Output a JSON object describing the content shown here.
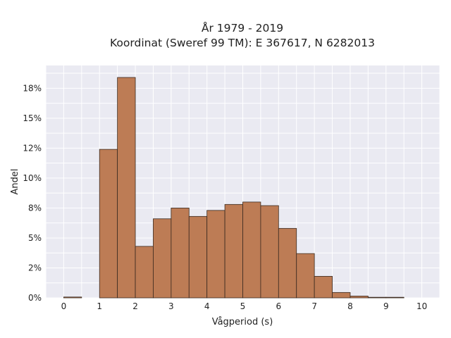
{
  "chart_data": {
    "type": "bar",
    "title": [
      "År 1979 - 2019",
      "Koordinat (Sweref 99 TM): E 367617, N 6282013"
    ],
    "xlabel": "Vågperiod (s)",
    "ylabel": "Andel",
    "x_bin_width": 0.5,
    "x_bin_starts": [
      0.0,
      0.5,
      1.0,
      1.5,
      2.0,
      2.5,
      3.0,
      3.5,
      4.0,
      4.5,
      5.0,
      5.5,
      6.0,
      6.5,
      7.0,
      7.5,
      8.0,
      8.5,
      9.0,
      9.5
    ],
    "values": [
      0.07,
      0.0,
      12.4,
      18.4,
      4.3,
      6.6,
      7.5,
      6.8,
      7.3,
      7.8,
      8.0,
      7.7,
      5.8,
      3.7,
      1.8,
      0.45,
      0.15,
      0.05,
      0.05,
      0.0
    ],
    "xlim": [
      -0.5,
      10.5
    ],
    "ylim": [
      0,
      19.4
    ],
    "x_ticks": [
      0,
      1,
      2,
      3,
      4,
      5,
      6,
      7,
      8,
      9,
      10
    ],
    "x_tick_labels": [
      "0",
      "1",
      "2",
      "3",
      "4",
      "5",
      "6",
      "7",
      "8",
      "9",
      "10"
    ],
    "y_ticks": [
      0,
      2.5,
      5,
      7.5,
      10,
      12.5,
      15,
      17.5
    ],
    "y_tick_labels": [
      "0%",
      "2%",
      "5%",
      "8%",
      "10%",
      "12%",
      "15%",
      "18%"
    ],
    "grid": true,
    "colors": {
      "bar": "#bd7c55",
      "edge": "#3a2a20",
      "plot_bg": "#eaeaf2",
      "grid": "#ffffff"
    }
  }
}
